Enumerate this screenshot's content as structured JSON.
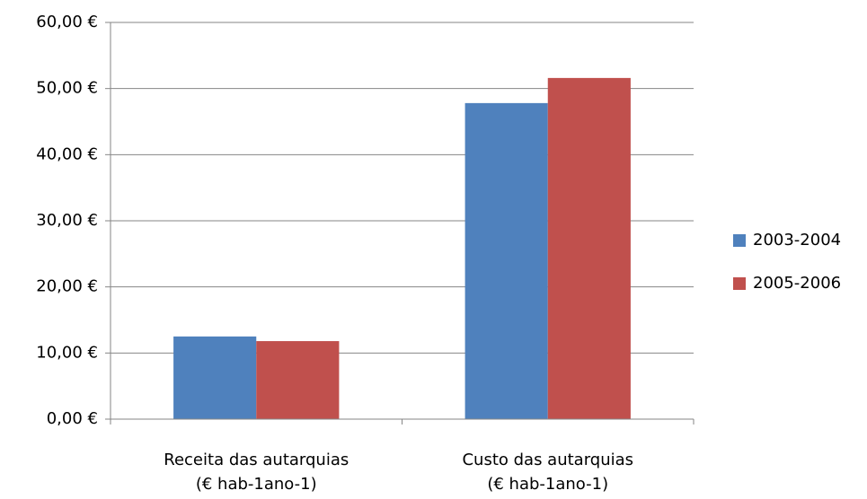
{
  "chart_data": {
    "type": "bar",
    "categories": [
      [
        "Receita das autarquias",
        "(€ hab-1ano-1)"
      ],
      [
        "Custo das autarquias",
        "(€ hab-1ano-1)"
      ]
    ],
    "series": [
      {
        "name": "2003-2004",
        "color": "#4f81bd",
        "values": [
          12.5,
          47.8
        ]
      },
      {
        "name": "2005-2006",
        "color": "#c0504d",
        "values": [
          11.8,
          51.6
        ]
      }
    ],
    "ylim": [
      0,
      60
    ],
    "yticks": [
      {
        "value": 0,
        "label": "0,00 €"
      },
      {
        "value": 10,
        "label": "10,00 €"
      },
      {
        "value": 20,
        "label": "20,00 €"
      },
      {
        "value": 30,
        "label": "30,00 €"
      },
      {
        "value": 40,
        "label": "40,00 €"
      },
      {
        "value": 50,
        "label": "50,00 €"
      },
      {
        "value": 60,
        "label": "60,00 €"
      }
    ],
    "grid": true,
    "legend": "right"
  }
}
